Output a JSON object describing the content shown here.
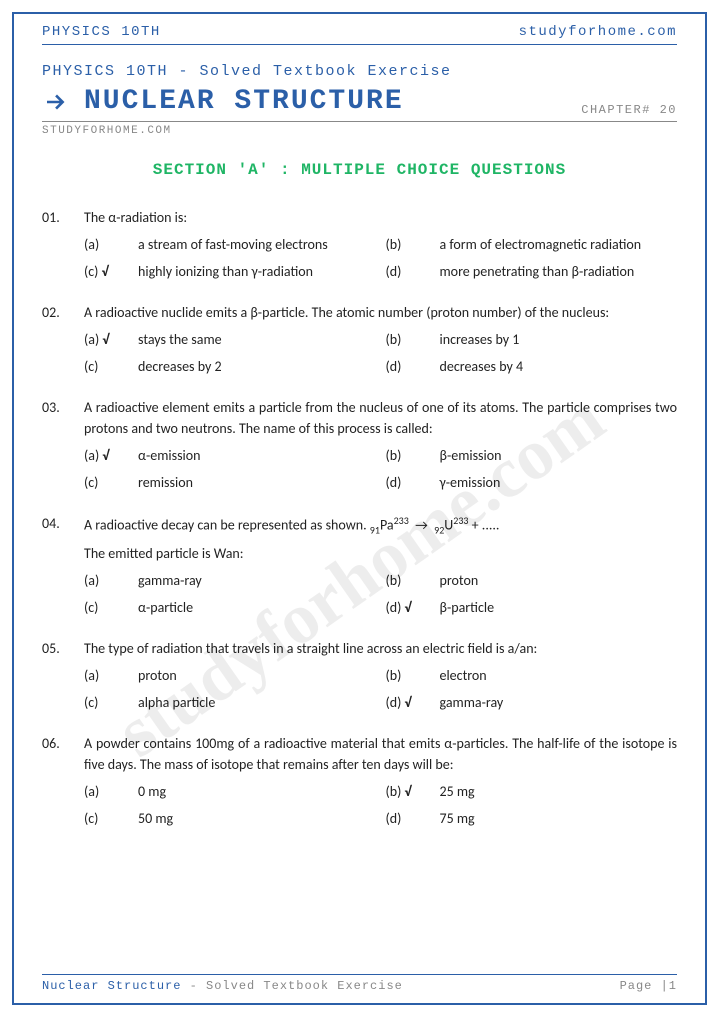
{
  "header": {
    "left": "PHYSICS 10TH",
    "right": "studyforhome.com"
  },
  "subtitle": "PHYSICS 10TH - Solved Textbook Exercise",
  "title": "NUCLEAR STRUCTURE",
  "chapter": "CHAPTER# 20",
  "siteline": "STUDYFORHOME.COM",
  "section_title": "SECTION 'A' : MULTIPLE CHOICE QUESTIONS",
  "watermark": "studyforhome.com",
  "questions": [
    {
      "num": "01.",
      "text": "The α-radiation is:",
      "options": [
        {
          "label": "(a)",
          "text": "a stream of fast-moving electrons",
          "correct": false
        },
        {
          "label": "(b)",
          "text": "a form of electromagnetic radiation",
          "correct": false
        },
        {
          "label": "(c)",
          "text": "highly ionizing than γ-radiation",
          "correct": true
        },
        {
          "label": "(d)",
          "text": "more penetrating than β-radiation",
          "correct": false
        }
      ]
    },
    {
      "num": "02.",
      "text": "A radioactive nuclide emits a β-particle. The atomic number (proton number) of the nucleus:",
      "options": [
        {
          "label": "(a)",
          "text": "stays the same",
          "correct": true
        },
        {
          "label": "(b)",
          "text": "increases by 1",
          "correct": false
        },
        {
          "label": "(c)",
          "text": "decreases by 2",
          "correct": false
        },
        {
          "label": "(d)",
          "text": "decreases by 4",
          "correct": false
        }
      ]
    },
    {
      "num": "03.",
      "text": "A radioactive element emits a particle from the nucleus of one of its atoms. The particle comprises two protons and two neutrons. The name of this process is called:",
      "options": [
        {
          "label": "(a)",
          "text": "α-emission",
          "correct": true
        },
        {
          "label": "(b)",
          "text": "β-emission",
          "correct": false
        },
        {
          "label": "(c)",
          "text": "remission",
          "correct": false
        },
        {
          "label": "(d)",
          "text": "γ-emission",
          "correct": false
        }
      ]
    },
    {
      "num": "04.",
      "text_html": "A radioactive decay can be represented as shown. <sub>91</sub>Pa<sup>233</sup> &nbsp;→&nbsp; <sub>92</sub>U<sup>233</sup> + .....",
      "subtext": "The emitted particle is Wan:",
      "options": [
        {
          "label": "(a)",
          "text": "gamma-ray",
          "correct": false
        },
        {
          "label": "(b)",
          "text": "proton",
          "correct": false
        },
        {
          "label": "(c)",
          "text": "α-particle",
          "correct": false
        },
        {
          "label": "(d)",
          "text": "β-particle",
          "correct": true
        }
      ]
    },
    {
      "num": "05.",
      "text": "The type of radiation that travels in a straight line across an electric field is a/an:",
      "options": [
        {
          "label": "(a)",
          "text": "proton",
          "correct": false
        },
        {
          "label": "(b)",
          "text": "electron",
          "correct": false
        },
        {
          "label": "(c)",
          "text": "alpha particle",
          "correct": false
        },
        {
          "label": "(d)",
          "text": "gamma-ray",
          "correct": true
        }
      ]
    },
    {
      "num": "06.",
      "text": "A powder contains 100mg of a radioactive material that emits α-particles. The half-life of the isotope is five days. The mass of isotope that remains after ten days will be:",
      "options": [
        {
          "label": "(a)",
          "text": "0 mg",
          "correct": false
        },
        {
          "label": "(b)",
          "text": "25 mg",
          "correct": true
        },
        {
          "label": "(c)",
          "text": "50 mg",
          "correct": false
        },
        {
          "label": "(d)",
          "text": "75 mg",
          "correct": false
        }
      ]
    }
  ],
  "footer": {
    "title": "Nuclear Structure",
    "sub": " - Solved Textbook Exercise",
    "page": "Page |1"
  },
  "colors": {
    "primary": "#2b5fa8",
    "section_green": "#1fb565",
    "grey": "#888888",
    "text": "#222222"
  }
}
